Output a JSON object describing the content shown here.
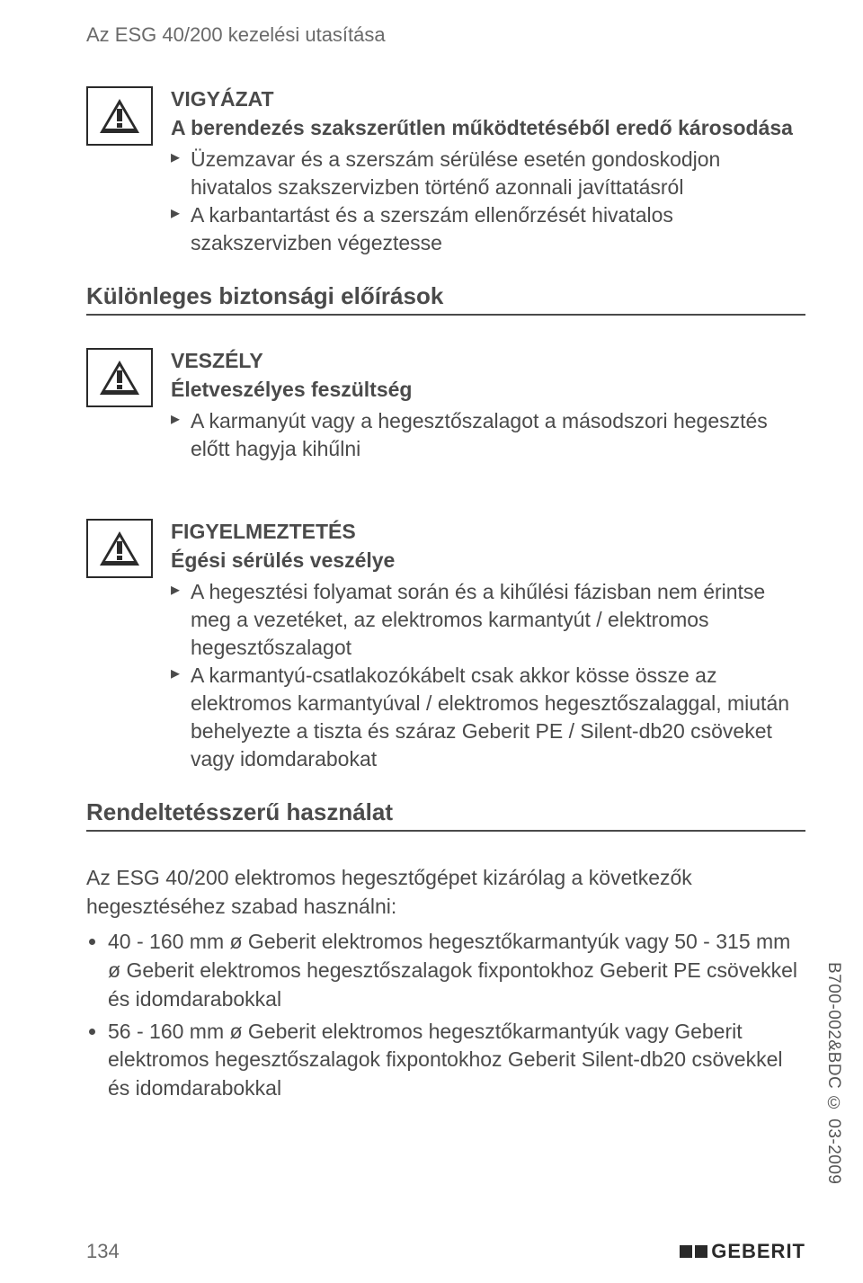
{
  "header": "Az ESG 40/200 kezelési utasítása",
  "box1": {
    "title": "VIGYÁZAT",
    "sub": "A berendezés szakszerűtlen működtetéséből eredő károsodása",
    "items": [
      "Üzemzavar és a szerszám sérülése esetén gondoskodjon hivatalos szakszervizben történő azonnali javíttatásról",
      "A karbantartást és a szerszám ellenőrzését hivatalos szakszervizben végeztesse"
    ]
  },
  "section1": "Különleges biztonsági előírások",
  "box2": {
    "title": "VESZÉLY",
    "sub": "Életveszélyes feszültség",
    "items": [
      "A karmanyút vagy a hegesztőszalagot a másodszori hegesztés előtt hagyja kihűlni"
    ]
  },
  "box3": {
    "title": "FIGYELMEZTETÉS",
    "sub": "Égési sérülés veszélye",
    "items": [
      "A hegesztési folyamat során és a kihűlési fázisban nem érintse meg a vezetéket, az elektromos karmantyút / elektromos hegesztőszalagot",
      "A karmantyú-csatlakozókábelt csak akkor kösse össze az elektromos karmantyúval / elektromos hegesztőszalaggal, miután behelyezte a tiszta és száraz Geberit PE / Silent-db20 csöveket vagy idomdarabokat"
    ]
  },
  "section2": "Rendeltetésszerű használat",
  "para1": "Az ESG 40/200 elektromos hegesztőgépet kizárólag a következők hegesztéséhez szabad használni:",
  "bullets": [
    "40 - 160 mm ø Geberit elektromos hegesztőkarmantyúk vagy 50 - 315 mm ø Geberit elektromos hegesztőszalagok fixpontokhoz Geberit PE csövekkel és idomdarabokkal",
    "56 - 160 mm ø Geberit elektromos hegesztőkarmantyúk vagy Geberit elektromos hegesztőszalagok fixpontokhoz Geberit Silent-db20 csövekkel és idomdarabokkal"
  ],
  "side_code": "B700-002&BDC © 03-2009",
  "page_number": "134",
  "brand": "GEBERIT"
}
